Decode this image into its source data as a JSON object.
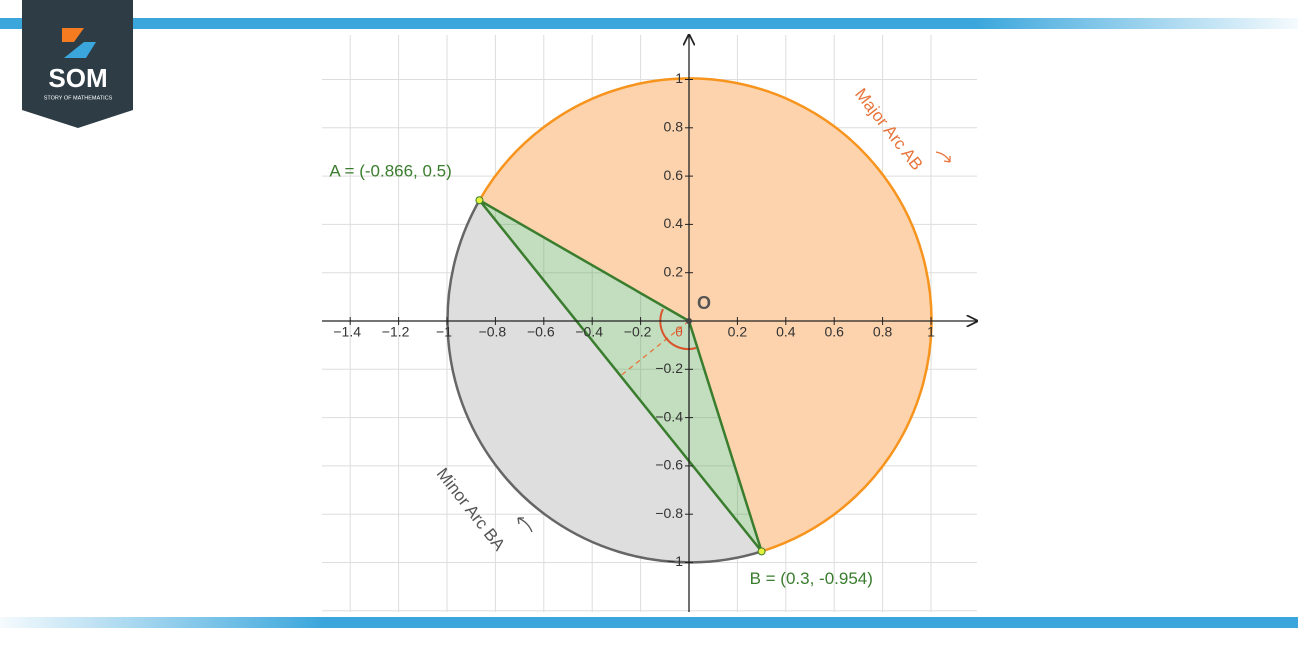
{
  "logo": {
    "text": "SOM",
    "subtitle": "STORY OF MATHEMATICS"
  },
  "axes": {
    "xticks": [
      {
        "value": -1.4,
        "label": "−1.4"
      },
      {
        "value": -1.2,
        "label": "−1.2"
      },
      {
        "value": -1,
        "label": "−1"
      },
      {
        "value": -0.8,
        "label": "−0.8"
      },
      {
        "value": -0.6,
        "label": "−0.6"
      },
      {
        "value": -0.4,
        "label": "−0.4"
      },
      {
        "value": -0.2,
        "label": "−0.2"
      },
      0.2,
      0.4,
      0.6,
      0.8,
      1
    ],
    "yticks": [
      1,
      0.8,
      0.6,
      0.4,
      0.2,
      {
        "value": -0.2,
        "label": "−0.2"
      },
      {
        "value": -0.4,
        "label": "−0.4"
      },
      {
        "value": -0.6,
        "label": "−0.6"
      },
      {
        "value": -0.8,
        "label": "−0.8"
      },
      {
        "value": -1,
        "label": "−1"
      }
    ]
  },
  "origin_label": "O",
  "angle_label": "θ",
  "points": [
    {
      "label": "A = (-0.866, 0.5)",
      "x": -0.866,
      "y": 0.5
    },
    {
      "label": "B = (0.3, -0.954)",
      "x": 0.3,
      "y": -0.954
    }
  ],
  "arcs": {
    "major": "Major Arc AB",
    "minor": "Minor Arc BA"
  }
}
